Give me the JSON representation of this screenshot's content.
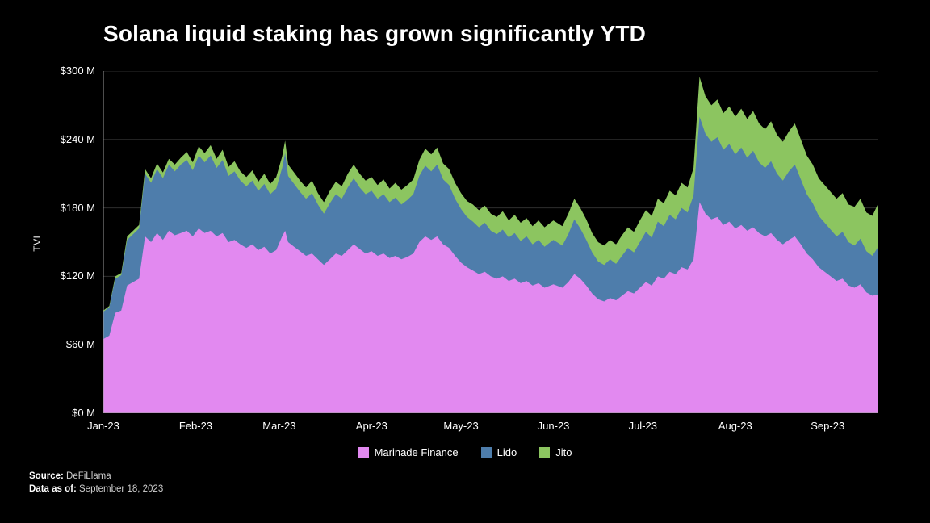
{
  "title": "Solana liquid staking has grown significantly YTD",
  "y_axis": {
    "label": "TVL"
  },
  "footer": {
    "source_label": "Source:",
    "source_value": "DeFiLlama",
    "asof_label": "Data as of:",
    "asof_value": "September 18, 2023"
  },
  "chart_data": {
    "type": "area",
    "stacked": true,
    "title": "Solana liquid staking has grown significantly YTD",
    "ylabel": "TVL",
    "xlabel": "",
    "x_unit": "days since 2023-01-01",
    "ylim": [
      0,
      300
    ],
    "grid": "horizontal",
    "legend_position": "bottom",
    "yticks": [
      {
        "value": 300,
        "label": "$300 M"
      },
      {
        "value": 240,
        "label": "$240 M"
      },
      {
        "value": 180,
        "label": "$180 M"
      },
      {
        "value": 120,
        "label": "$120 M"
      },
      {
        "value": 60,
        "label": "$60 M"
      },
      {
        "value": 0,
        "label": "$0 M"
      }
    ],
    "xticks": [
      {
        "day": 0,
        "label": "Jan-23"
      },
      {
        "day": 31,
        "label": "Feb-23"
      },
      {
        "day": 59,
        "label": "Mar-23"
      },
      {
        "day": 90,
        "label": "Apr-23"
      },
      {
        "day": 120,
        "label": "May-23"
      },
      {
        "day": 151,
        "label": "Jun-23"
      },
      {
        "day": 181,
        "label": "Jul-23"
      },
      {
        "day": 212,
        "label": "Aug-23"
      },
      {
        "day": 243,
        "label": "Sep-23"
      }
    ],
    "x": [
      0,
      2,
      4,
      6,
      8,
      10,
      12,
      14,
      16,
      18,
      20,
      22,
      24,
      26,
      28,
      30,
      32,
      34,
      36,
      38,
      40,
      42,
      44,
      46,
      48,
      50,
      52,
      54,
      56,
      58,
      60,
      61,
      62,
      64,
      66,
      68,
      70,
      72,
      74,
      76,
      78,
      80,
      82,
      84,
      86,
      88,
      90,
      92,
      94,
      96,
      98,
      100,
      102,
      104,
      106,
      108,
      110,
      112,
      114,
      116,
      118,
      120,
      122,
      124,
      126,
      128,
      130,
      132,
      134,
      136,
      138,
      140,
      142,
      144,
      146,
      148,
      150,
      151,
      154,
      156,
      158,
      160,
      162,
      164,
      166,
      168,
      170,
      172,
      174,
      176,
      178,
      180,
      182,
      184,
      186,
      188,
      190,
      192,
      194,
      196,
      198,
      200,
      202,
      204,
      206,
      208,
      210,
      212,
      214,
      216,
      218,
      220,
      222,
      224,
      226,
      228,
      230,
      232,
      234,
      236,
      238,
      240,
      242,
      244,
      246,
      248,
      250,
      252,
      254,
      256,
      258,
      260
    ],
    "series": [
      {
        "name": "Marinade Finance",
        "color": "#e289f0",
        "unit": "$M TVL",
        "values": [
          65,
          68,
          88,
          90,
          112,
          115,
          118,
          155,
          150,
          158,
          152,
          160,
          156,
          158,
          160,
          155,
          162,
          158,
          160,
          155,
          158,
          150,
          152,
          148,
          145,
          148,
          143,
          146,
          140,
          143,
          155,
          160,
          150,
          146,
          142,
          138,
          140,
          135,
          130,
          135,
          140,
          138,
          143,
          148,
          144,
          140,
          142,
          138,
          140,
          136,
          138,
          135,
          137,
          140,
          150,
          155,
          152,
          155,
          148,
          145,
          138,
          132,
          128,
          125,
          122,
          124,
          120,
          118,
          120,
          116,
          118,
          114,
          116,
          112,
          114,
          110,
          112,
          113,
          110,
          115,
          122,
          118,
          112,
          105,
          100,
          98,
          101,
          99,
          103,
          107,
          105,
          110,
          115,
          112,
          120,
          118,
          124,
          122,
          128,
          126,
          135,
          185,
          175,
          170,
          172,
          165,
          168,
          162,
          165,
          160,
          163,
          158,
          155,
          158,
          152,
          148,
          152,
          155,
          148,
          140,
          135,
          128,
          124,
          120,
          116,
          118,
          112,
          110,
          113,
          106,
          103,
          104
        ]
      },
      {
        "name": "Lido",
        "color": "#4e7dab",
        "unit": "$M TVL",
        "values": [
          24,
          25,
          30,
          31,
          40,
          42,
          44,
          55,
          52,
          56,
          54,
          58,
          56,
          60,
          62,
          58,
          64,
          62,
          66,
          60,
          64,
          58,
          60,
          56,
          54,
          56,
          52,
          55,
          52,
          54,
          60,
          68,
          58,
          55,
          52,
          50,
          53,
          48,
          45,
          49,
          52,
          50,
          55,
          58,
          54,
          52,
          53,
          50,
          52,
          49,
          51,
          48,
          50,
          52,
          58,
          62,
          60,
          63,
          57,
          55,
          50,
          47,
          44,
          43,
          41,
          43,
          40,
          39,
          41,
          38,
          40,
          37,
          39,
          36,
          38,
          36,
          38,
          39,
          37,
          42,
          48,
          44,
          40,
          36,
          33,
          32,
          34,
          32,
          35,
          38,
          36,
          40,
          44,
          42,
          48,
          46,
          50,
          48,
          52,
          50,
          56,
          75,
          70,
          68,
          70,
          66,
          68,
          65,
          68,
          64,
          67,
          62,
          60,
          63,
          58,
          56,
          60,
          63,
          57,
          52,
          49,
          45,
          43,
          41,
          39,
          41,
          38,
          37,
          40,
          36,
          35,
          42
        ]
      },
      {
        "name": "Jito",
        "color": "#8cc560",
        "unit": "$M TVL",
        "values": [
          1,
          1,
          2,
          2,
          3,
          3,
          3,
          4,
          4,
          5,
          5,
          5,
          6,
          6,
          7,
          7,
          8,
          8,
          9,
          8,
          9,
          8,
          9,
          8,
          8,
          9,
          8,
          9,
          9,
          10,
          10,
          11,
          10,
          10,
          10,
          10,
          11,
          10,
          10,
          11,
          11,
          11,
          12,
          12,
          12,
          12,
          12,
          12,
          13,
          12,
          13,
          13,
          13,
          13,
          14,
          15,
          15,
          15,
          14,
          14,
          14,
          14,
          14,
          15,
          15,
          15,
          15,
          15,
          16,
          15,
          16,
          16,
          16,
          16,
          17,
          17,
          17,
          17,
          17,
          18,
          18,
          18,
          18,
          17,
          17,
          17,
          17,
          17,
          18,
          18,
          18,
          19,
          19,
          19,
          20,
          20,
          21,
          21,
          22,
          22,
          24,
          35,
          33,
          32,
          33,
          32,
          33,
          33,
          34,
          34,
          35,
          34,
          34,
          35,
          34,
          34,
          35,
          36,
          35,
          34,
          34,
          33,
          33,
          33,
          33,
          34,
          33,
          34,
          35,
          34,
          35,
          38
        ]
      }
    ]
  }
}
